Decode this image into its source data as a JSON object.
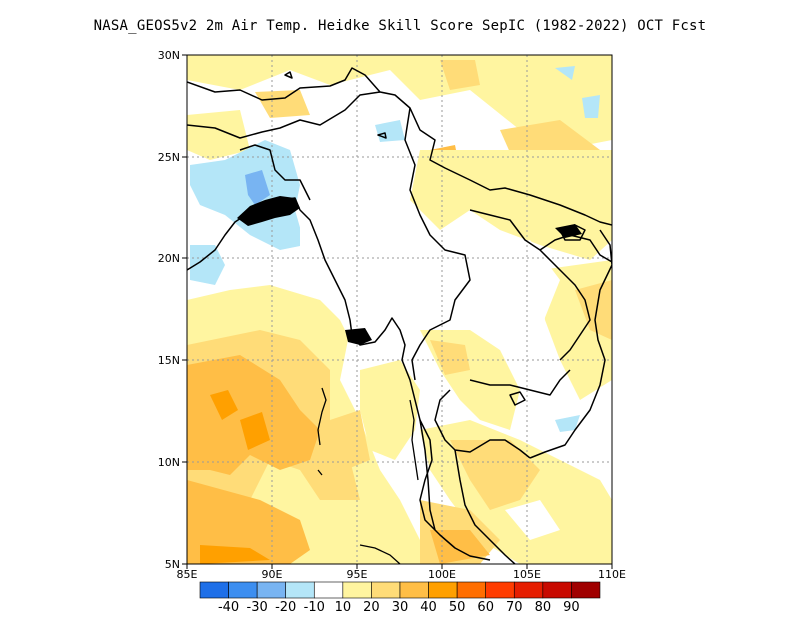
{
  "title": "NASA_GEOS5v2  2m Air Temp. Heidke Skill Score SepIC (1982-2022) OCT Fcst",
  "map": {
    "lon_range": [
      85,
      110
    ],
    "lat_range": [
      5,
      30
    ],
    "x_ticks": [
      "85E",
      "90E",
      "95E",
      "100E",
      "105E",
      "110E"
    ],
    "y_ticks": [
      "5N",
      "10N",
      "15N",
      "20N",
      "25N",
      "30N"
    ],
    "gridlines": "dotted"
  },
  "colorbar": {
    "labels": [
      "-40",
      "-30",
      "-20",
      "-10",
      "10",
      "20",
      "30",
      "40",
      "50",
      "60",
      "70",
      "80",
      "90"
    ],
    "colors": [
      "#1e6fe8",
      "#3c8ef0",
      "#78b4f2",
      "#b4e6f8",
      "#ffffff",
      "#fff5a0",
      "#ffdc78",
      "#ffbe46",
      "#ffa000",
      "#ff6e00",
      "#ff3c00",
      "#e61e00",
      "#c80a00",
      "#a00000"
    ]
  },
  "palette": {
    "light_yellow": "#fff5a0",
    "yellow": "#ffdc78",
    "light_orange": "#ffbe46",
    "orange": "#ffa000",
    "light_blue": "#b4e6f8",
    "blue": "#78b4f2",
    "coast": "#000000"
  }
}
